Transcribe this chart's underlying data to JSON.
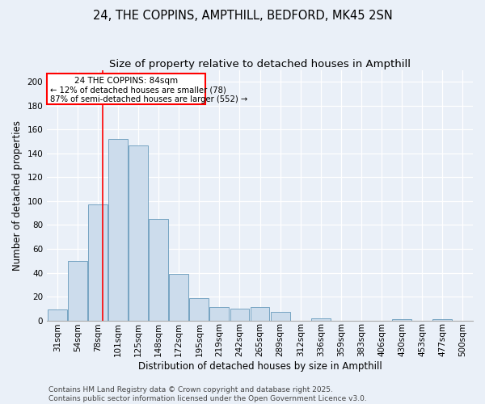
{
  "title1": "24, THE COPPINS, AMPTHILL, BEDFORD, MK45 2SN",
  "title2": "Size of property relative to detached houses in Ampthill",
  "xlabel": "Distribution of detached houses by size in Ampthill",
  "ylabel": "Number of detached properties",
  "footer1": "Contains HM Land Registry data © Crown copyright and database right 2025.",
  "footer2": "Contains public sector information licensed under the Open Government Licence v3.0.",
  "bar_color": "#ccdcec",
  "bar_edge_color": "#6699bb",
  "annotation_line1": "24 THE COPPINS: 84sqm",
  "annotation_line2": "← 12% of detached houses are smaller (78)",
  "annotation_line3": "87% of semi-detached houses are larger (552) →",
  "red_line_x": 2,
  "categories": [
    "31sqm",
    "54sqm",
    "78sqm",
    "101sqm",
    "125sqm",
    "148sqm",
    "172sqm",
    "195sqm",
    "219sqm",
    "242sqm",
    "265sqm",
    "289sqm",
    "312sqm",
    "336sqm",
    "359sqm",
    "383sqm",
    "406sqm",
    "430sqm",
    "453sqm",
    "477sqm",
    "500sqm"
  ],
  "values": [
    9,
    50,
    97,
    152,
    147,
    85,
    39,
    19,
    11,
    10,
    11,
    7,
    0,
    2,
    0,
    0,
    0,
    1,
    0,
    1,
    0
  ],
  "ylim": [
    0,
    210
  ],
  "yticks": [
    0,
    20,
    40,
    60,
    80,
    100,
    120,
    140,
    160,
    180,
    200
  ],
  "background_color": "#eaf0f8",
  "grid_color": "#ffffff",
  "title_fontsize": 10.5,
  "subtitle_fontsize": 9.5,
  "axis_label_fontsize": 8.5,
  "tick_fontsize": 7.5,
  "footer_fontsize": 6.5,
  "annotation_fontsize": 7.5
}
